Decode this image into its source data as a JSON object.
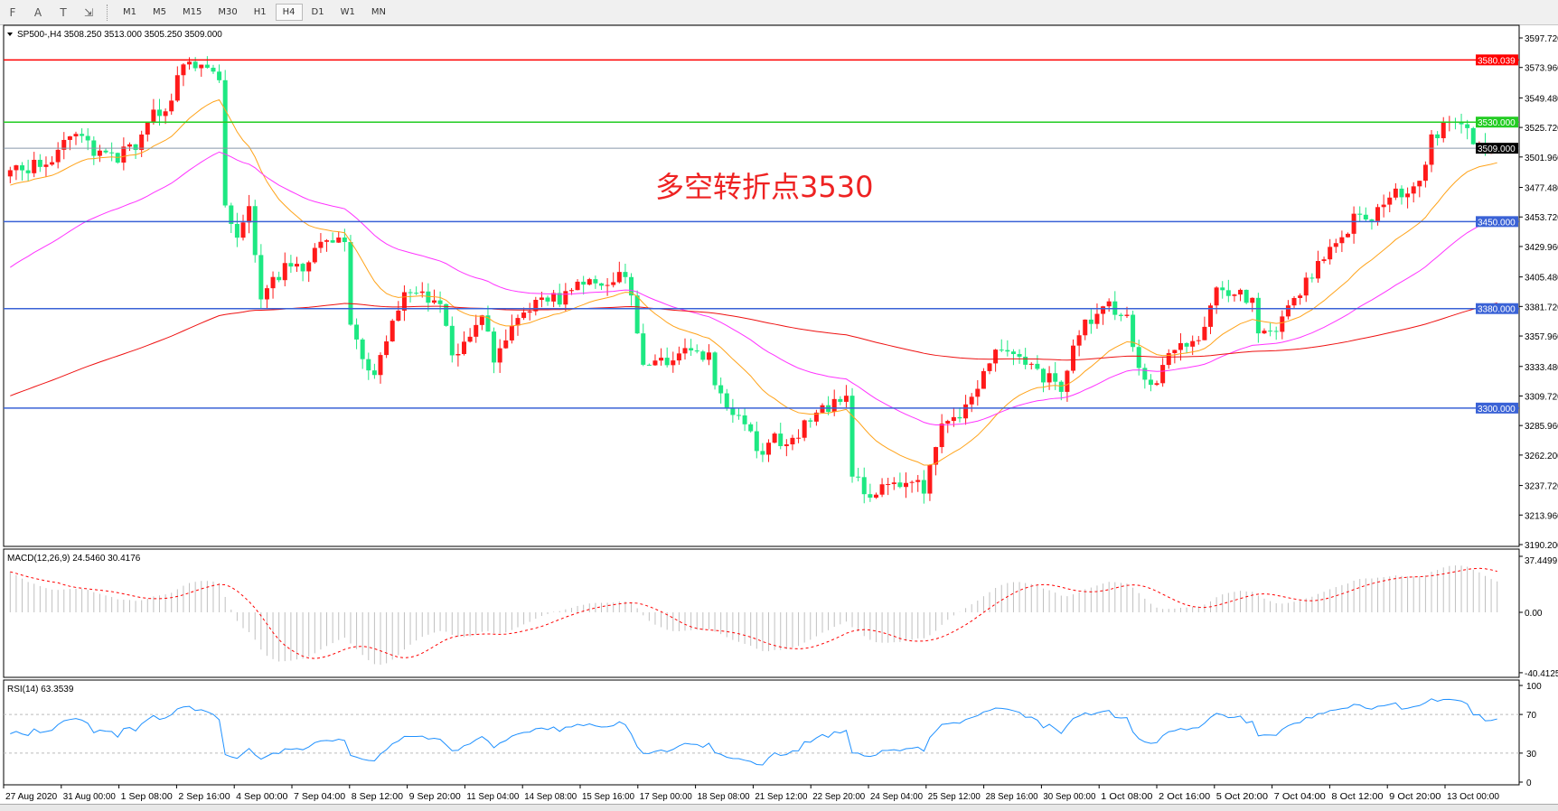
{
  "toolbar": {
    "tools": [
      {
        "icon": "period-separator-icon",
        "label": "F"
      },
      {
        "icon": "text-icon",
        "label": "A"
      },
      {
        "icon": "text-label-icon",
        "label": "T"
      },
      {
        "icon": "arrows-icon",
        "label": "⇲"
      }
    ],
    "timeframes": [
      "M1",
      "M5",
      "M15",
      "M30",
      "H1",
      "H4",
      "D1",
      "W1",
      "MN"
    ],
    "active_timeframe": "H4"
  },
  "chart": {
    "header": "SP500-,H4  3508.250 3513.000 3505.250 3509.000",
    "annotation": "多空转折点3530",
    "colors": {
      "bull": "#ff1a1a",
      "bear": "#1de882",
      "ma_fast": "#ffa31a",
      "ma_mid": "#ff33ff",
      "ma_slow": "#ee1111",
      "macd_hist": "#c0c0c0",
      "macd_signal": "#ff0000",
      "rsi": "#1e90ff"
    },
    "price_axis": [
      "3597.720",
      "3573.960",
      "3549.480",
      "3525.720",
      "3501.960",
      "3477.480",
      "3453.720",
      "3429.960",
      "3405.480",
      "3381.720",
      "3357.960",
      "3333.480",
      "3309.720",
      "3285.960",
      "3262.200",
      "3237.720",
      "3213.960",
      "3190.200"
    ],
    "levels": [
      {
        "price": 3580.039,
        "label": "3580.039",
        "color": "#ff0000"
      },
      {
        "price": 3530.0,
        "label": "3530.000",
        "color": "#22cc22"
      },
      {
        "price": 3509.0,
        "label": "3509.000",
        "color": "#000000"
      },
      {
        "price": 3450.0,
        "label": "3450.000",
        "color": "#3a62d6"
      },
      {
        "price": 3380.0,
        "label": "3380.000",
        "color": "#3a62d6"
      },
      {
        "price": 3300.0,
        "label": "3300.000",
        "color": "#3a62d6"
      }
    ],
    "price_path": [
      [
        0,
        3488
      ],
      [
        8,
        3504
      ],
      [
        10,
        3520
      ],
      [
        16,
        3500
      ],
      [
        21,
        3508
      ],
      [
        23,
        3532
      ],
      [
        27,
        3548
      ],
      [
        29,
        3576
      ],
      [
        33,
        3572
      ],
      [
        35,
        3564
      ],
      [
        36,
        3468
      ],
      [
        38,
        3436
      ],
      [
        40,
        3468
      ],
      [
        42,
        3388
      ],
      [
        46,
        3412
      ],
      [
        49,
        3412
      ],
      [
        52,
        3436
      ],
      [
        56,
        3436
      ],
      [
        57,
        3372
      ],
      [
        60,
        3332
      ],
      [
        61,
        3324
      ],
      [
        63,
        3356
      ],
      [
        66,
        3396
      ],
      [
        69,
        3388
      ],
      [
        72,
        3388
      ],
      [
        74,
        3340
      ],
      [
        76,
        3356
      ],
      [
        79,
        3372
      ],
      [
        81,
        3340
      ],
      [
        85,
        3372
      ],
      [
        88,
        3388
      ],
      [
        92,
        3388
      ],
      [
        96,
        3404
      ],
      [
        99,
        3396
      ],
      [
        102,
        3412
      ],
      [
        104,
        3388
      ],
      [
        106,
        3332
      ],
      [
        110,
        3340
      ],
      [
        114,
        3348
      ],
      [
        117,
        3340
      ],
      [
        119,
        3308
      ],
      [
        123,
        3292
      ],
      [
        125,
        3260
      ],
      [
        128,
        3276
      ],
      [
        130,
        3272
      ],
      [
        134,
        3292
      ],
      [
        137,
        3300
      ],
      [
        140,
        3304
      ],
      [
        141,
        3244
      ],
      [
        144,
        3228
      ],
      [
        147,
        3236
      ],
      [
        150,
        3244
      ],
      [
        153,
        3236
      ],
      [
        156,
        3284
      ],
      [
        159,
        3296
      ],
      [
        161,
        3308
      ],
      [
        164,
        3340
      ],
      [
        167,
        3348
      ],
      [
        170,
        3332
      ],
      [
        174,
        3324
      ],
      [
        176,
        3308
      ],
      [
        179,
        3364
      ],
      [
        182,
        3372
      ],
      [
        184,
        3380
      ],
      [
        187,
        3372
      ],
      [
        189,
        3332
      ],
      [
        192,
        3316
      ],
      [
        194,
        3348
      ],
      [
        198,
        3356
      ],
      [
        200,
        3364
      ],
      [
        202,
        3392
      ],
      [
        205,
        3392
      ],
      [
        208,
        3388
      ],
      [
        209,
        3356
      ],
      [
        212,
        3360
      ],
      [
        215,
        3388
      ],
      [
        219,
        3416
      ],
      [
        223,
        3436
      ],
      [
        225,
        3452
      ],
      [
        229,
        3456
      ],
      [
        231,
        3472
      ],
      [
        234,
        3476
      ],
      [
        237,
        3492
      ],
      [
        238,
        3516
      ],
      [
        241,
        3528
      ],
      [
        243,
        3524
      ],
      [
        246,
        3512
      ],
      [
        247,
        3504
      ],
      [
        250,
        3509
      ]
    ]
  },
  "macd": {
    "label": "MACD(12,26,9) 24.5460 30.4176",
    "axis": [
      "37.4499",
      "0.00",
      "-40.4125"
    ]
  },
  "rsi": {
    "label": "RSI(14) 63.3539",
    "axis": [
      "100",
      "70",
      "30",
      "0"
    ]
  },
  "time_axis": [
    "27 Aug 2020",
    "31 Aug 00:00",
    "1 Sep 08:00",
    "2 Sep 16:00",
    "4 Sep 00:00",
    "7 Sep 04:00",
    "8 Sep 12:00",
    "9 Sep 20:00",
    "11 Sep 04:00",
    "14 Sep 08:00",
    "15 Sep 16:00",
    "17 Sep 00:00",
    "18 Sep 08:00",
    "21 Sep 12:00",
    "22 Sep 20:00",
    "24 Sep 04:00",
    "25 Sep 12:00",
    "28 Sep 16:00",
    "30 Sep 00:00",
    "1 Oct 08:00",
    "2 Oct 16:00",
    "5 Oct 20:00",
    "7 Oct 04:00",
    "8 Oct 12:00",
    "9 Oct 20:00",
    "13 Oct 00:00"
  ]
}
